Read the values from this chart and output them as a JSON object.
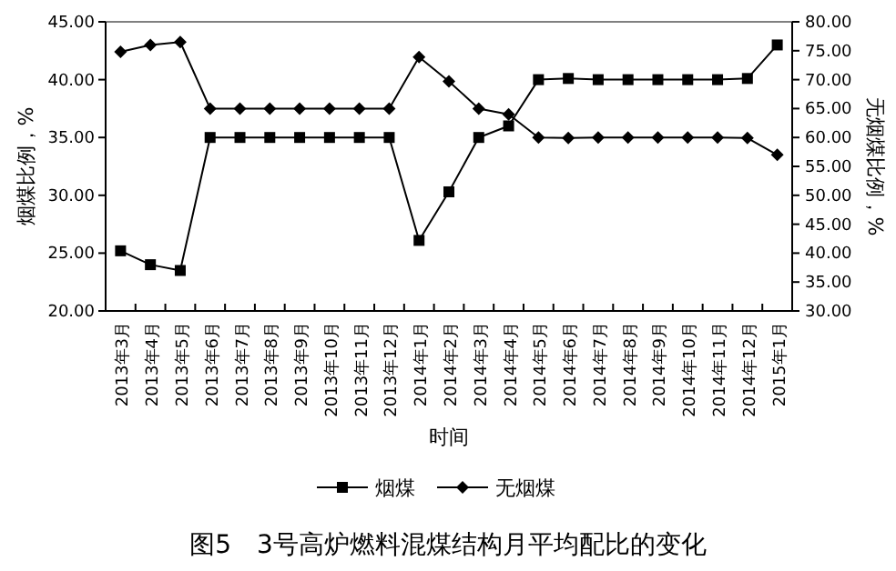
{
  "chart_data": {
    "type": "line",
    "title": "图5　3号高炉燃料混煤结构月平均配比的变化",
    "xlabel": "时间",
    "ylabel": "烟煤比例，%",
    "y2label": "无烟煤比例，%",
    "categories": [
      "2013年3月",
      "2013年4月",
      "2013年5月",
      "2013年6月",
      "2013年7月",
      "2013年8月",
      "2013年9月",
      "2013年10月",
      "2013年11月",
      "2013年12月",
      "2014年1月",
      "2014年2月",
      "2014年3月",
      "2014年4月",
      "2014年5月",
      "2014年6月",
      "2014年7月",
      "2014年8月",
      "2014年9月",
      "2014年10月",
      "2014年11月",
      "2014年12月",
      "2015年1月"
    ],
    "series": [
      {
        "name": "烟煤",
        "color": "#000000",
        "marker": "square",
        "values": [
          25.2,
          24.0,
          23.5,
          35.0,
          35.0,
          35.0,
          35.0,
          35.0,
          35.0,
          35.0,
          26.1,
          30.3,
          35.0,
          36.0,
          40.0,
          40.1,
          40.0,
          40.0,
          40.0,
          40.0,
          40.0,
          40.1,
          43.0
        ]
      },
      {
        "name": "无烟煤",
        "color": "#000000",
        "marker": "diamond",
        "axis": "y2",
        "values": [
          74.8,
          76.0,
          76.5,
          65.0,
          65.0,
          65.0,
          65.0,
          65.0,
          65.0,
          65.0,
          73.9,
          69.7,
          65.0,
          64.0,
          60.0,
          59.9,
          60.0,
          60.0,
          60.0,
          60.0,
          60.0,
          59.9,
          57.0
        ]
      }
    ],
    "ylim": [
      20,
      45
    ],
    "yticks": [
      {
        "value": 20,
        "label": "20.00"
      },
      {
        "value": 25,
        "label": "25.00"
      },
      {
        "value": 30,
        "label": "30.00"
      },
      {
        "value": 35,
        "label": "35.00"
      },
      {
        "value": 40,
        "label": "40.00"
      },
      {
        "value": 45,
        "label": "45.00"
      }
    ],
    "y2lim": [
      30,
      80
    ],
    "y2ticks": [
      {
        "value": 30,
        "label": "30.00"
      },
      {
        "value": 35,
        "label": "35.00"
      },
      {
        "value": 40,
        "label": "40.00"
      },
      {
        "value": 45,
        "label": "45.00"
      },
      {
        "value": 50,
        "label": "50.00"
      },
      {
        "value": 55,
        "label": "55.00"
      },
      {
        "value": 60,
        "label": "60.00"
      },
      {
        "value": 65,
        "label": "65.00"
      },
      {
        "value": 70,
        "label": "70.00"
      },
      {
        "value": 75,
        "label": "75.00"
      },
      {
        "value": 80,
        "label": "80.00"
      }
    ],
    "legend": "bottom",
    "grid": false,
    "line_style": "solid"
  }
}
